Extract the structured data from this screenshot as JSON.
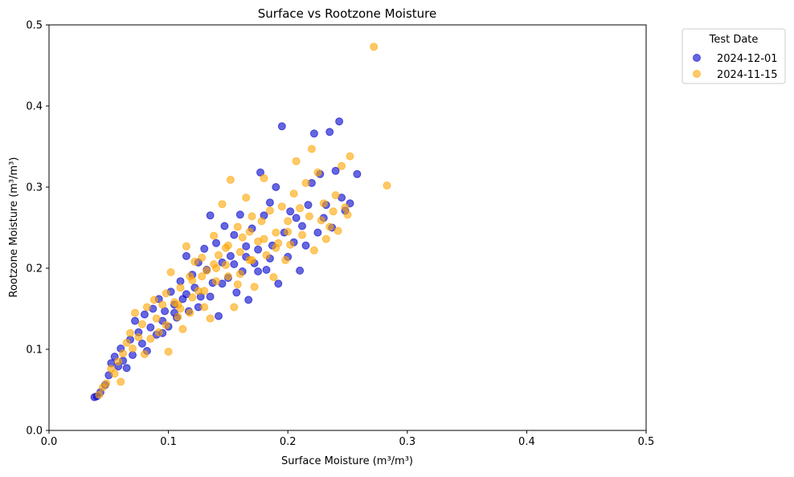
{
  "chart_data": {
    "type": "scatter",
    "title": "Surface vs Rootzone Moisture",
    "xlabel": "Surface Moisture (m³/m³)",
    "ylabel": "Rootzone Moisture (m³/m³)",
    "xlim": [
      0.0,
      0.5
    ],
    "ylim": [
      0.0,
      0.5
    ],
    "xticks": [
      "0.0",
      "0.1",
      "0.2",
      "0.3",
      "0.4",
      "0.5"
    ],
    "yticks": [
      "0.0",
      "0.1",
      "0.2",
      "0.3",
      "0.4",
      "0.5"
    ],
    "grid": false,
    "legend": {
      "title": "Test Date",
      "placement": "outside-top-right",
      "entries": [
        "2024-12-01",
        "2024-11-15"
      ]
    },
    "colors": {
      "2024-12-01": "#0000cc",
      "2024-11-15": "#ffa500"
    },
    "series": [
      {
        "name": "2024-12-01",
        "color": "#0000cc",
        "points": [
          [
            0.038,
            0.041
          ],
          [
            0.04,
            0.042
          ],
          [
            0.043,
            0.047
          ],
          [
            0.047,
            0.056
          ],
          [
            0.05,
            0.068
          ],
          [
            0.052,
            0.083
          ],
          [
            0.055,
            0.091
          ],
          [
            0.058,
            0.079
          ],
          [
            0.06,
            0.101
          ],
          [
            0.062,
            0.086
          ],
          [
            0.065,
            0.077
          ],
          [
            0.068,
            0.112
          ],
          [
            0.07,
            0.093
          ],
          [
            0.072,
            0.135
          ],
          [
            0.075,
            0.121
          ],
          [
            0.078,
            0.107
          ],
          [
            0.08,
            0.143
          ],
          [
            0.082,
            0.098
          ],
          [
            0.085,
            0.127
          ],
          [
            0.087,
            0.15
          ],
          [
            0.09,
            0.118
          ],
          [
            0.092,
            0.162
          ],
          [
            0.095,
            0.135
          ],
          [
            0.097,
            0.147
          ],
          [
            0.1,
            0.128
          ],
          [
            0.102,
            0.171
          ],
          [
            0.105,
            0.155
          ],
          [
            0.107,
            0.139
          ],
          [
            0.11,
            0.184
          ],
          [
            0.112,
            0.162
          ],
          [
            0.115,
            0.215
          ],
          [
            0.117,
            0.147
          ],
          [
            0.12,
            0.192
          ],
          [
            0.122,
            0.176
          ],
          [
            0.125,
            0.207
          ],
          [
            0.127,
            0.165
          ],
          [
            0.13,
            0.224
          ],
          [
            0.132,
            0.198
          ],
          [
            0.135,
            0.265
          ],
          [
            0.137,
            0.182
          ],
          [
            0.14,
            0.231
          ],
          [
            0.142,
            0.141
          ],
          [
            0.145,
            0.207
          ],
          [
            0.147,
            0.252
          ],
          [
            0.15,
            0.188
          ],
          [
            0.152,
            0.215
          ],
          [
            0.155,
            0.241
          ],
          [
            0.157,
            0.17
          ],
          [
            0.16,
            0.266
          ],
          [
            0.162,
            0.196
          ],
          [
            0.165,
            0.227
          ],
          [
            0.167,
            0.161
          ],
          [
            0.17,
            0.249
          ],
          [
            0.172,
            0.206
          ],
          [
            0.175,
            0.223
          ],
          [
            0.177,
            0.318
          ],
          [
            0.18,
            0.265
          ],
          [
            0.182,
            0.198
          ],
          [
            0.185,
            0.281
          ],
          [
            0.187,
            0.228
          ],
          [
            0.19,
            0.3
          ],
          [
            0.192,
            0.181
          ],
          [
            0.195,
            0.375
          ],
          [
            0.197,
            0.244
          ],
          [
            0.2,
            0.214
          ],
          [
            0.202,
            0.27
          ],
          [
            0.205,
            0.232
          ],
          [
            0.207,
            0.262
          ],
          [
            0.21,
            0.197
          ],
          [
            0.212,
            0.252
          ],
          [
            0.215,
            0.228
          ],
          [
            0.217,
            0.278
          ],
          [
            0.22,
            0.305
          ],
          [
            0.222,
            0.366
          ],
          [
            0.225,
            0.244
          ],
          [
            0.227,
            0.316
          ],
          [
            0.23,
            0.262
          ],
          [
            0.232,
            0.278
          ],
          [
            0.235,
            0.368
          ],
          [
            0.237,
            0.25
          ],
          [
            0.24,
            0.32
          ],
          [
            0.243,
            0.381
          ],
          [
            0.245,
            0.287
          ],
          [
            0.248,
            0.271
          ],
          [
            0.252,
            0.28
          ],
          [
            0.258,
            0.316
          ],
          [
            0.135,
            0.165
          ],
          [
            0.145,
            0.181
          ],
          [
            0.155,
            0.205
          ],
          [
            0.165,
            0.214
          ],
          [
            0.125,
            0.152
          ],
          [
            0.115,
            0.168
          ],
          [
            0.175,
            0.196
          ],
          [
            0.185,
            0.212
          ],
          [
            0.095,
            0.12
          ],
          [
            0.105,
            0.145
          ]
        ]
      },
      {
        "name": "2024-11-15",
        "color": "#ffa500",
        "points": [
          [
            0.042,
            0.044
          ],
          [
            0.045,
            0.053
          ],
          [
            0.048,
            0.058
          ],
          [
            0.052,
            0.076
          ],
          [
            0.055,
            0.07
          ],
          [
            0.058,
            0.085
          ],
          [
            0.06,
            0.06
          ],
          [
            0.062,
            0.095
          ],
          [
            0.065,
            0.108
          ],
          [
            0.068,
            0.12
          ],
          [
            0.07,
            0.101
          ],
          [
            0.072,
            0.145
          ],
          [
            0.075,
            0.115
          ],
          [
            0.078,
            0.131
          ],
          [
            0.08,
            0.094
          ],
          [
            0.082,
            0.152
          ],
          [
            0.085,
            0.113
          ],
          [
            0.088,
            0.161
          ],
          [
            0.09,
            0.138
          ],
          [
            0.092,
            0.121
          ],
          [
            0.095,
            0.155
          ],
          [
            0.098,
            0.169
          ],
          [
            0.1,
            0.097
          ],
          [
            0.102,
            0.195
          ],
          [
            0.105,
            0.158
          ],
          [
            0.108,
            0.14
          ],
          [
            0.11,
            0.176
          ],
          [
            0.112,
            0.125
          ],
          [
            0.115,
            0.227
          ],
          [
            0.118,
            0.19
          ],
          [
            0.12,
            0.164
          ],
          [
            0.122,
            0.208
          ],
          [
            0.125,
            0.172
          ],
          [
            0.128,
            0.213
          ],
          [
            0.13,
            0.152
          ],
          [
            0.132,
            0.197
          ],
          [
            0.135,
            0.138
          ],
          [
            0.138,
            0.24
          ],
          [
            0.14,
            0.184
          ],
          [
            0.142,
            0.216
          ],
          [
            0.145,
            0.279
          ],
          [
            0.148,
            0.204
          ],
          [
            0.15,
            0.228
          ],
          [
            0.152,
            0.309
          ],
          [
            0.155,
            0.152
          ],
          [
            0.158,
            0.251
          ],
          [
            0.16,
            0.193
          ],
          [
            0.162,
            0.238
          ],
          [
            0.165,
            0.287
          ],
          [
            0.168,
            0.21
          ],
          [
            0.17,
            0.264
          ],
          [
            0.172,
            0.177
          ],
          [
            0.175,
            0.233
          ],
          [
            0.178,
            0.258
          ],
          [
            0.18,
            0.311
          ],
          [
            0.182,
            0.216
          ],
          [
            0.185,
            0.271
          ],
          [
            0.188,
            0.189
          ],
          [
            0.19,
            0.244
          ],
          [
            0.192,
            0.231
          ],
          [
            0.195,
            0.276
          ],
          [
            0.198,
            0.21
          ],
          [
            0.2,
            0.258
          ],
          [
            0.202,
            0.229
          ],
          [
            0.205,
            0.292
          ],
          [
            0.207,
            0.332
          ],
          [
            0.21,
            0.274
          ],
          [
            0.212,
            0.241
          ],
          [
            0.215,
            0.305
          ],
          [
            0.218,
            0.264
          ],
          [
            0.22,
            0.347
          ],
          [
            0.222,
            0.222
          ],
          [
            0.225,
            0.318
          ],
          [
            0.228,
            0.259
          ],
          [
            0.23,
            0.28
          ],
          [
            0.232,
            0.236
          ],
          [
            0.235,
            0.251
          ],
          [
            0.238,
            0.27
          ],
          [
            0.24,
            0.29
          ],
          [
            0.242,
            0.246
          ],
          [
            0.245,
            0.326
          ],
          [
            0.248,
            0.275
          ],
          [
            0.252,
            0.338
          ],
          [
            0.25,
            0.266
          ],
          [
            0.272,
            0.473
          ],
          [
            0.283,
            0.302
          ],
          [
            0.11,
            0.15
          ],
          [
            0.12,
            0.185
          ],
          [
            0.13,
            0.172
          ],
          [
            0.14,
            0.2
          ],
          [
            0.15,
            0.19
          ],
          [
            0.16,
            0.22
          ],
          [
            0.17,
            0.21
          ],
          [
            0.18,
            0.236
          ],
          [
            0.19,
            0.225
          ],
          [
            0.2,
            0.245
          ],
          [
            0.098,
            0.13
          ],
          [
            0.108,
            0.155
          ],
          [
            0.118,
            0.145
          ],
          [
            0.128,
            0.19
          ],
          [
            0.138,
            0.205
          ],
          [
            0.148,
            0.225
          ],
          [
            0.158,
            0.18
          ],
          [
            0.168,
            0.245
          ]
        ]
      }
    ]
  }
}
